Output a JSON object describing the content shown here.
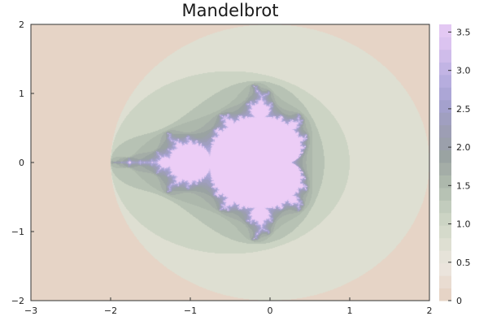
{
  "chart_data": {
    "type": "heatmap",
    "title": "Mandelbrot",
    "xlabel": "",
    "ylabel": "",
    "xlim": [
      -3,
      2
    ],
    "ylim": [
      -2,
      2
    ],
    "x_ticks": [
      "−3",
      "−2",
      "−1",
      "0",
      "1",
      "2"
    ],
    "x_tick_values": [
      -3,
      -2,
      -1,
      0,
      1,
      2
    ],
    "y_ticks": [
      "−2",
      "−1",
      "0",
      "1",
      "2"
    ],
    "y_tick_values": [
      -2,
      -1,
      0,
      1,
      2
    ],
    "colorbar": {
      "range": [
        0,
        3.6
      ],
      "ticks": [
        "0",
        "0.5",
        "1.0",
        "1.5",
        "2.0",
        "2.5",
        "3.0",
        "3.5"
      ],
      "tick_values": [
        0,
        0.5,
        1.0,
        1.5,
        2.0,
        2.5,
        3.0,
        3.5
      ],
      "levels": 22
    },
    "function": "log escape-time of z -> z^2 + c",
    "palette": [
      "#e6d4c6",
      "#ece6de",
      "#dbdecf",
      "#c6d0c0",
      "#afbaad",
      "#9aa3a2",
      "#9d9db6",
      "#a5a2d2",
      "#bdb1e2",
      "#d9c2ef",
      "#eccdf6"
    ]
  }
}
